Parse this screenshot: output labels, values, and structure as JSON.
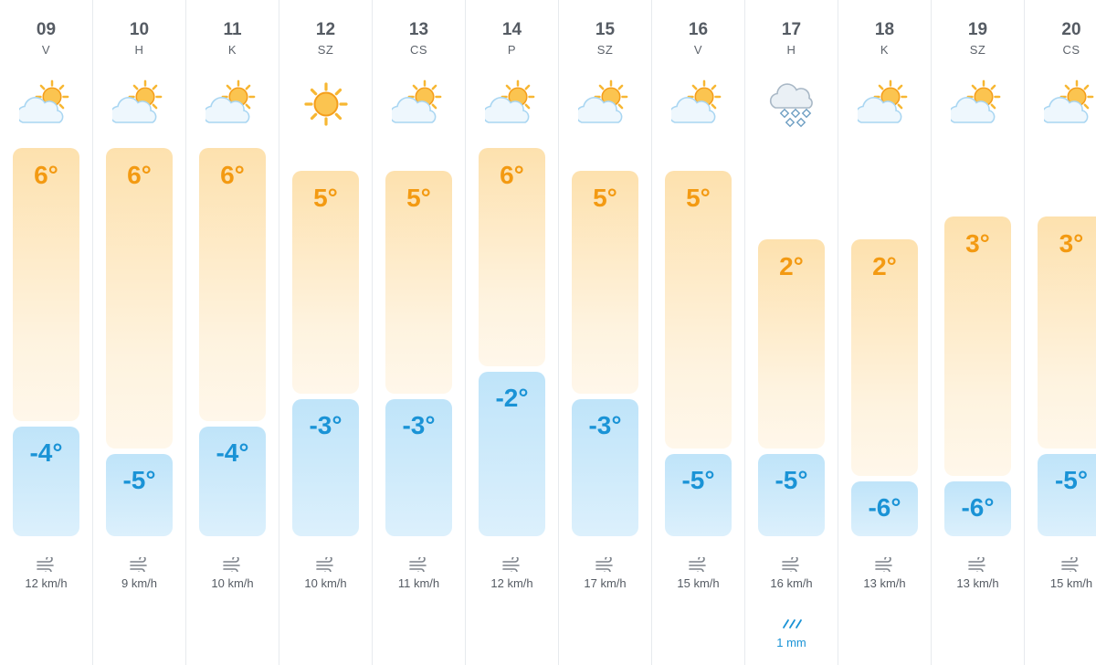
{
  "scale": {
    "max_temp": 6,
    "min_temp": -6
  },
  "days": [
    {
      "day": "09",
      "weekday": "V",
      "icon": "partly-cloudy-icon",
      "max": "6°",
      "min": "-4°",
      "max_value": 6,
      "min_value": -4,
      "wind": "12 km/h",
      "precip": ""
    },
    {
      "day": "10",
      "weekday": "H",
      "icon": "partly-cloudy-icon",
      "max": "6°",
      "min": "-5°",
      "max_value": 6,
      "min_value": -5,
      "wind": "9 km/h",
      "precip": ""
    },
    {
      "day": "11",
      "weekday": "K",
      "icon": "partly-cloudy-icon",
      "max": "6°",
      "min": "-4°",
      "max_value": 6,
      "min_value": -4,
      "wind": "10 km/h",
      "precip": ""
    },
    {
      "day": "12",
      "weekday": "SZ",
      "icon": "sun-icon",
      "max": "5°",
      "min": "-3°",
      "max_value": 5,
      "min_value": -3,
      "wind": "10 km/h",
      "precip": ""
    },
    {
      "day": "13",
      "weekday": "CS",
      "icon": "partly-cloudy-icon",
      "max": "5°",
      "min": "-3°",
      "max_value": 5,
      "min_value": -3,
      "wind": "11 km/h",
      "precip": ""
    },
    {
      "day": "14",
      "weekday": "P",
      "icon": "partly-cloudy-icon",
      "max": "6°",
      "min": "-2°",
      "max_value": 6,
      "min_value": -2,
      "wind": "12 km/h",
      "precip": ""
    },
    {
      "day": "15",
      "weekday": "SZ",
      "icon": "partly-cloudy-icon",
      "max": "5°",
      "min": "-3°",
      "max_value": 5,
      "min_value": -3,
      "wind": "17 km/h",
      "precip": ""
    },
    {
      "day": "16",
      "weekday": "V",
      "icon": "partly-cloudy-icon",
      "max": "5°",
      "min": "-5°",
      "max_value": 5,
      "min_value": -5,
      "wind": "15 km/h",
      "precip": ""
    },
    {
      "day": "17",
      "weekday": "H",
      "icon": "snow-cloud-icon",
      "max": "2°",
      "min": "-5°",
      "max_value": 2,
      "min_value": -5,
      "wind": "16 km/h",
      "precip": "1 mm"
    },
    {
      "day": "18",
      "weekday": "K",
      "icon": "partly-cloudy-icon",
      "max": "2°",
      "min": "-6°",
      "max_value": 2,
      "min_value": -6,
      "wind": "13 km/h",
      "precip": ""
    },
    {
      "day": "19",
      "weekday": "SZ",
      "icon": "partly-cloudy-icon",
      "max": "3°",
      "min": "-6°",
      "max_value": 3,
      "min_value": -6,
      "wind": "13 km/h",
      "precip": ""
    },
    {
      "day": "20",
      "weekday": "CS",
      "icon": "partly-cloudy-icon",
      "max": "3°",
      "min": "-5°",
      "max_value": 3,
      "min_value": -5,
      "wind": "15 km/h",
      "precip": ""
    }
  ]
}
